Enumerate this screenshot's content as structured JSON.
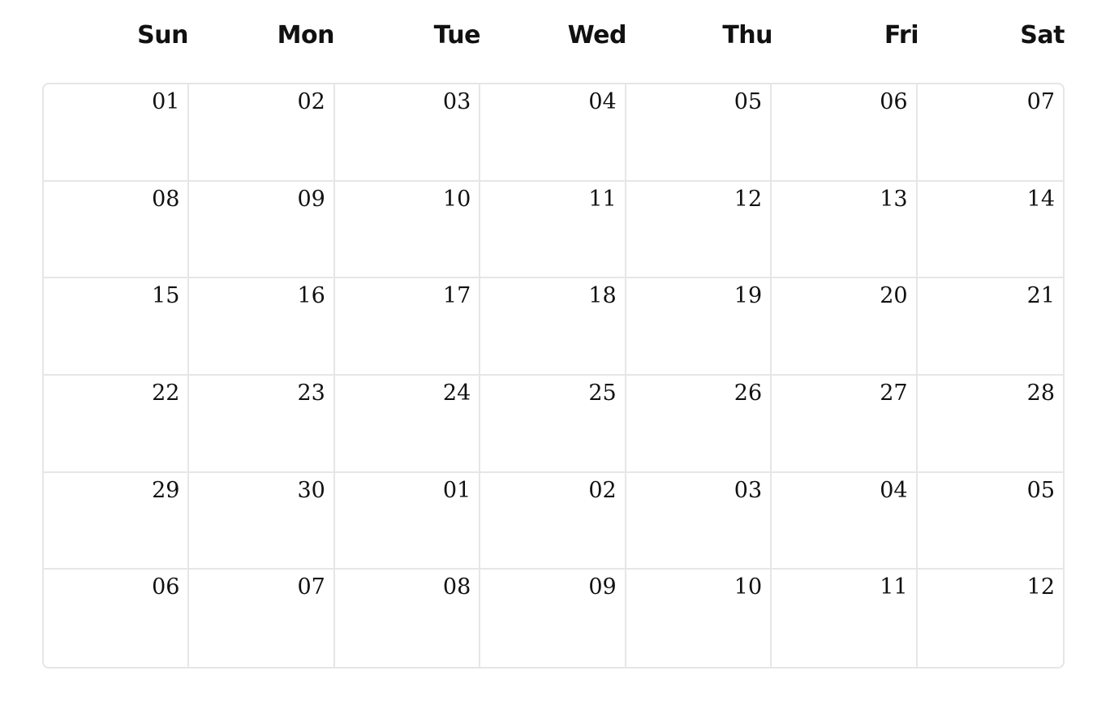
{
  "colors": {
    "border": "#e6e6e6",
    "text": "#111111",
    "background": "#ffffff"
  },
  "weekdays": [
    "Sun",
    "Mon",
    "Tue",
    "Wed",
    "Thu",
    "Fri",
    "Sat"
  ],
  "weeks": [
    [
      "01",
      "02",
      "03",
      "04",
      "05",
      "06",
      "07"
    ],
    [
      "08",
      "09",
      "10",
      "11",
      "12",
      "13",
      "14"
    ],
    [
      "15",
      "16",
      "17",
      "18",
      "19",
      "20",
      "21"
    ],
    [
      "22",
      "23",
      "24",
      "25",
      "26",
      "27",
      "28"
    ],
    [
      "29",
      "30",
      "01",
      "02",
      "03",
      "04",
      "05"
    ],
    [
      "06",
      "07",
      "08",
      "09",
      "10",
      "11",
      "12"
    ]
  ]
}
